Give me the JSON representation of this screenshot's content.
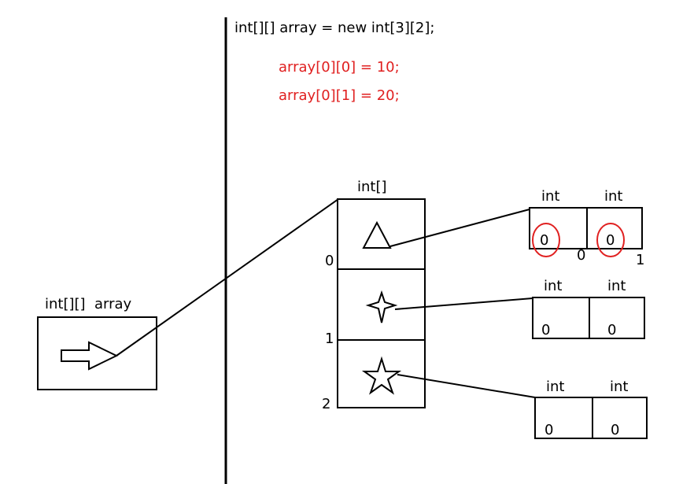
{
  "code": {
    "declaration": "int[][] array = new int[3][2];",
    "statements": [
      "array[0][0] = 10;",
      "array[0][1] = 20;"
    ],
    "statement_color": "#e02020"
  },
  "stack": {
    "variable_label": "int[][]  array",
    "arrow_icon": "arrow-right-icon"
  },
  "outer_array": {
    "type_label": "int[]",
    "indices": [
      "0",
      "1",
      "2"
    ],
    "slot_icons": [
      "triangle-icon",
      "star-icon",
      "star-icon"
    ]
  },
  "inner_arrays": [
    {
      "headers": [
        "int",
        "int"
      ],
      "values": [
        "0",
        "0"
      ],
      "indices": [
        "0",
        "1"
      ],
      "circled": true,
      "circle_color": "#e02020"
    },
    {
      "headers": [
        "int",
        "int"
      ],
      "values": [
        "0",
        "0"
      ]
    },
    {
      "headers": [
        "int",
        "int"
      ],
      "values": [
        "0",
        "0"
      ]
    }
  ]
}
